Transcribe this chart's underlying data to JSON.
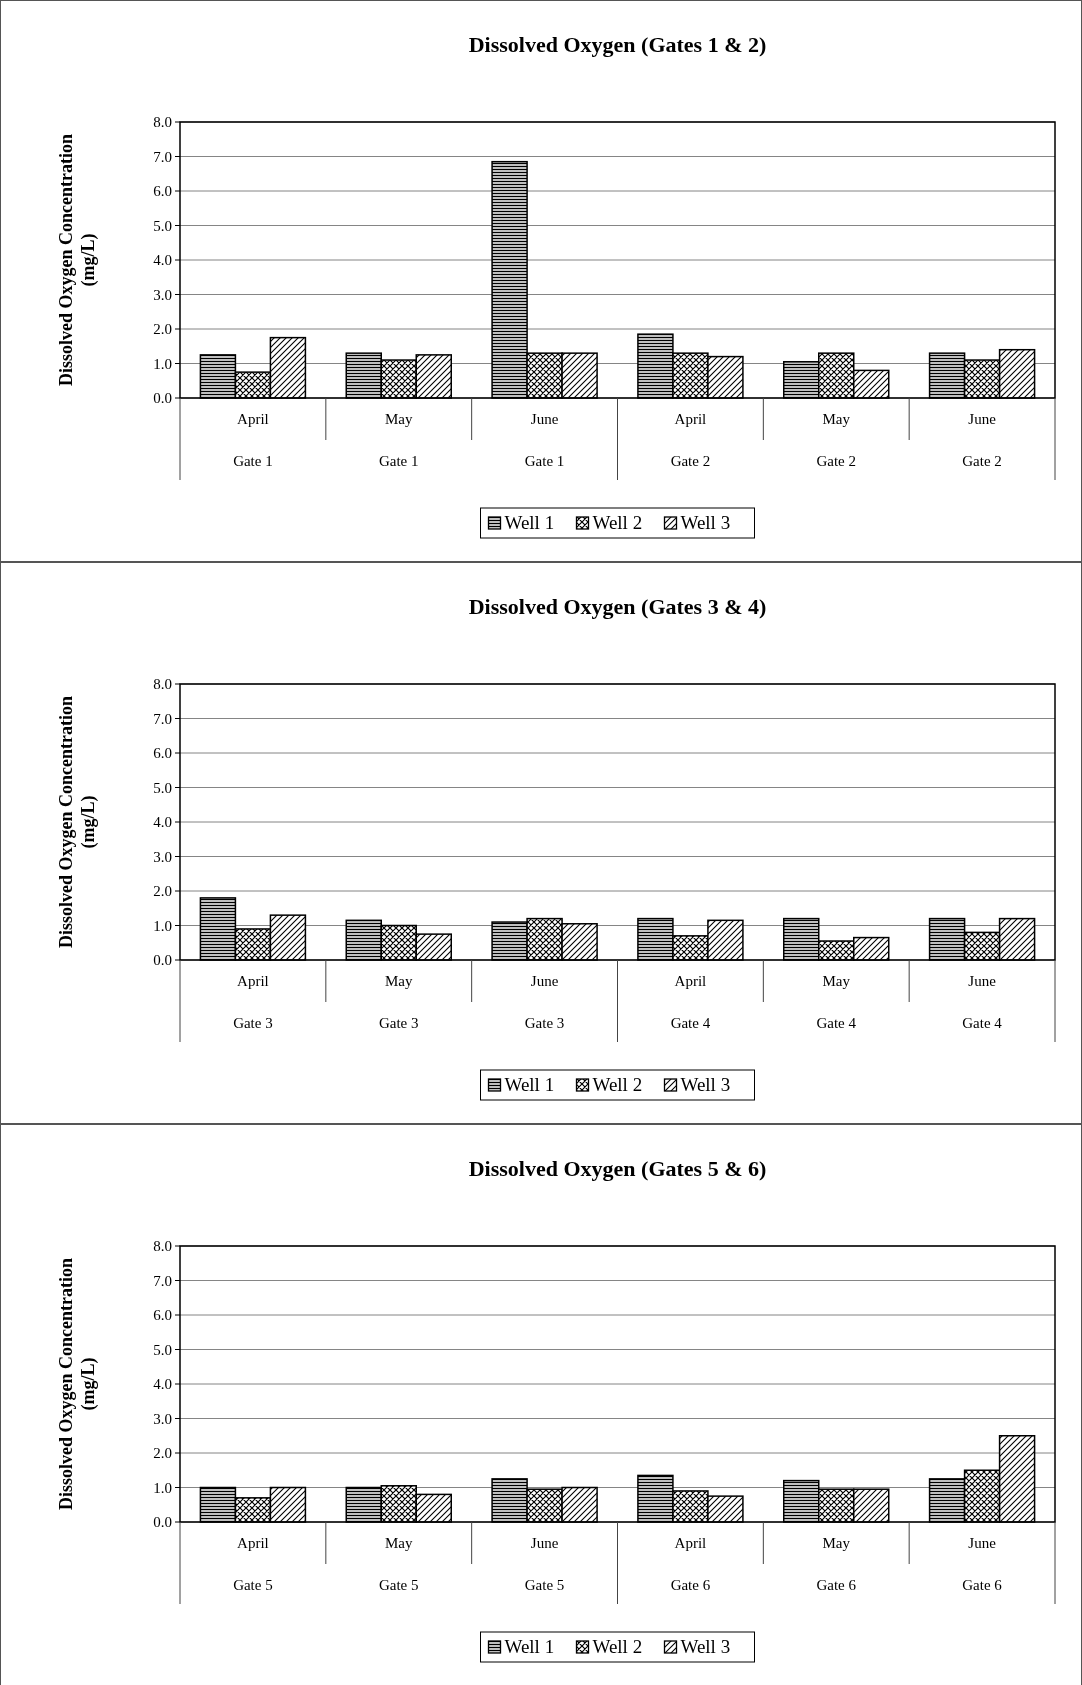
{
  "chart_data": [
    {
      "type": "bar",
      "title": "Dissolved Oxygen (Gates 1 & 2)",
      "ylabel": "Dissolved Oxygen Concentration\n(mg/L)",
      "categories": [
        "April\nGate 1",
        "May\nGate 1",
        "June\nGate 1",
        "April\nGate 2",
        "May\nGate 2",
        "June\nGate 2"
      ],
      "series": [
        {
          "name": "Well 1",
          "color": "#000000",
          "values": [
            1.25,
            1.3,
            6.85,
            1.85,
            1.05,
            1.3
          ]
        },
        {
          "name": "Well 2",
          "color": "#000000",
          "values": [
            0.75,
            1.1,
            1.3,
            1.3,
            1.3,
            1.1
          ]
        },
        {
          "name": "Well 3",
          "color": "#000000",
          "values": [
            1.75,
            1.25,
            1.3,
            1.2,
            0.8,
            1.4
          ]
        }
      ],
      "ylim": [
        0,
        8
      ],
      "yticks": [
        {
          "value": 0,
          "label": "0.0"
        },
        {
          "value": 1,
          "label": "1.0"
        },
        {
          "value": 2,
          "label": "2.0"
        },
        {
          "value": 3,
          "label": "3.0"
        },
        {
          "value": 4,
          "label": "4.0"
        },
        {
          "value": 5,
          "label": "5.0"
        },
        {
          "value": 6,
          "label": "6.0"
        },
        {
          "value": 7,
          "label": "7.0"
        },
        {
          "value": 8,
          "label": "8.0"
        }
      ],
      "grid": "y",
      "legend": "bottom"
    },
    {
      "type": "bar",
      "title": "Dissolved Oxygen (Gates 3 & 4)",
      "ylabel": "Dissolved Oxygen Concentration\n(mg/L)",
      "categories": [
        "April\nGate 3",
        "May\nGate 3",
        "June\nGate 3",
        "April\nGate 4",
        "May\nGate 4",
        "June\nGate 4"
      ],
      "series": [
        {
          "name": "Well 1",
          "color": "#000000",
          "values": [
            1.8,
            1.15,
            1.1,
            1.2,
            1.2,
            1.2
          ]
        },
        {
          "name": "Well 2",
          "color": "#000000",
          "values": [
            0.9,
            1.0,
            1.2,
            0.7,
            0.55,
            0.8
          ]
        },
        {
          "name": "Well 3",
          "color": "#000000",
          "values": [
            1.3,
            0.75,
            1.05,
            1.15,
            0.65,
            1.2
          ]
        }
      ],
      "ylim": [
        0,
        8
      ],
      "yticks": [
        {
          "value": 0,
          "label": "0.0"
        },
        {
          "value": 1,
          "label": "1.0"
        },
        {
          "value": 2,
          "label": "2.0"
        },
        {
          "value": 3,
          "label": "3.0"
        },
        {
          "value": 4,
          "label": "4.0"
        },
        {
          "value": 5,
          "label": "5.0"
        },
        {
          "value": 6,
          "label": "6.0"
        },
        {
          "value": 7,
          "label": "7.0"
        },
        {
          "value": 8,
          "label": "8.0"
        }
      ],
      "grid": "y",
      "legend": "bottom"
    },
    {
      "type": "bar",
      "title": "Dissolved Oxygen (Gates 5 & 6)",
      "ylabel": "Dissolved Oxygen Concentration\n(mg/L)",
      "categories": [
        "April\nGate 5",
        "May\nGate 5",
        "June\nGate 5",
        "April\nGate 6",
        "May\nGate 6",
        "June\nGate 6"
      ],
      "series": [
        {
          "name": "Well 1",
          "color": "#000000",
          "values": [
            1.0,
            1.0,
            1.25,
            1.35,
            1.2,
            1.25
          ]
        },
        {
          "name": "Well 2",
          "color": "#000000",
          "values": [
            0.7,
            1.05,
            0.95,
            0.9,
            0.95,
            1.5
          ]
        },
        {
          "name": "Well 3",
          "color": "#000000",
          "values": [
            1.0,
            0.8,
            1.0,
            0.75,
            0.95,
            2.5
          ]
        }
      ],
      "ylim": [
        0,
        8
      ],
      "yticks": [
        {
          "value": 0,
          "label": "0.0"
        },
        {
          "value": 1,
          "label": "1.0"
        },
        {
          "value": 2,
          "label": "2.0"
        },
        {
          "value": 3,
          "label": "3.0"
        },
        {
          "value": 4,
          "label": "4.0"
        },
        {
          "value": 5,
          "label": "5.0"
        },
        {
          "value": 6,
          "label": "6.0"
        },
        {
          "value": 7,
          "label": "7.0"
        },
        {
          "value": 8,
          "label": "8.0"
        }
      ],
      "grid": "y",
      "legend": "bottom"
    }
  ]
}
